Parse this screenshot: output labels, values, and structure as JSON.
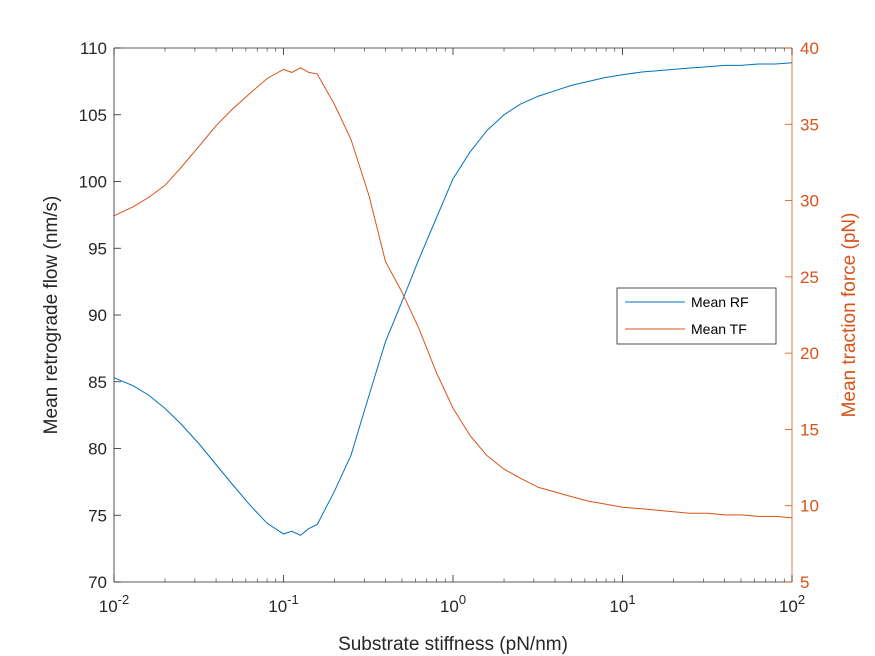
{
  "chart_data": {
    "type": "line",
    "title": "",
    "xlabel": "Substrate stiffness (pN/nm)",
    "x_scale": "log",
    "xlim": [
      0.01,
      100
    ],
    "x_ticks": [
      0.01,
      0.1,
      1,
      10,
      100
    ],
    "x_tick_labels": [
      {
        "base": "10",
        "exp": "-2"
      },
      {
        "base": "10",
        "exp": "-1"
      },
      {
        "base": "10",
        "exp": "0"
      },
      {
        "base": "10",
        "exp": "1"
      },
      {
        "base": "10",
        "exp": "2"
      }
    ],
    "y_left": {
      "label": "Mean retrograde flow (nm/s)",
      "lim": [
        70,
        110
      ],
      "ticks": [
        "70",
        "75",
        "80",
        "85",
        "90",
        "95",
        "100",
        "105",
        "110"
      ],
      "color": "#000000"
    },
    "y_right": {
      "label": "Mean traction force (pN)",
      "lim": [
        5,
        40
      ],
      "ticks": [
        "5",
        "10",
        "15",
        "20",
        "25",
        "30",
        "35",
        "40"
      ],
      "color": "#D95319"
    },
    "grid": false,
    "legend": {
      "placement": "right",
      "entries": [
        "Mean RF",
        "Mean TF"
      ]
    },
    "series": [
      {
        "name": "Mean RF",
        "axis": "left",
        "color": "#0072BD",
        "x": [
          0.01,
          0.013,
          0.016,
          0.02,
          0.025,
          0.032,
          0.04,
          0.05,
          0.063,
          0.08,
          0.1,
          0.112,
          0.126,
          0.141,
          0.158,
          0.2,
          0.25,
          0.32,
          0.4,
          0.5,
          0.63,
          0.8,
          1.0,
          1.26,
          1.58,
          2.0,
          2.5,
          3.2,
          4.0,
          5.0,
          6.3,
          8.0,
          10,
          13,
          16,
          20,
          25,
          32,
          40,
          50,
          63,
          80,
          100
        ],
        "values": [
          85.3,
          84.7,
          84.0,
          83.0,
          81.8,
          80.3,
          78.8,
          77.3,
          75.8,
          74.4,
          73.6,
          73.8,
          73.5,
          74.0,
          74.3,
          76.8,
          79.5,
          84.0,
          88.0,
          91.0,
          94.2,
          97.3,
          100.2,
          102.2,
          103.8,
          105.0,
          105.8,
          106.4,
          106.8,
          107.2,
          107.5,
          107.8,
          108.0,
          108.2,
          108.3,
          108.4,
          108.5,
          108.6,
          108.7,
          108.7,
          108.8,
          108.8,
          108.9
        ]
      },
      {
        "name": "Mean TF",
        "axis": "right",
        "color": "#D95319",
        "x": [
          0.01,
          0.013,
          0.016,
          0.02,
          0.025,
          0.032,
          0.04,
          0.05,
          0.063,
          0.08,
          0.1,
          0.112,
          0.126,
          0.141,
          0.158,
          0.2,
          0.25,
          0.32,
          0.4,
          0.5,
          0.63,
          0.8,
          1.0,
          1.26,
          1.58,
          2.0,
          2.5,
          3.2,
          4.0,
          5.0,
          6.3,
          8.0,
          10,
          13,
          16,
          20,
          25,
          32,
          40,
          50,
          63,
          80,
          100
        ],
        "values": [
          29.0,
          29.6,
          30.2,
          31.0,
          32.2,
          33.6,
          34.9,
          36.0,
          37.0,
          38.0,
          38.6,
          38.4,
          38.7,
          38.4,
          38.3,
          36.3,
          34.0,
          30.3,
          26.0,
          24.0,
          21.6,
          18.7,
          16.4,
          14.6,
          13.3,
          12.4,
          11.8,
          11.2,
          10.9,
          10.6,
          10.3,
          10.1,
          9.9,
          9.8,
          9.7,
          9.6,
          9.5,
          9.5,
          9.4,
          9.4,
          9.3,
          9.3,
          9.2
        ]
      }
    ]
  }
}
